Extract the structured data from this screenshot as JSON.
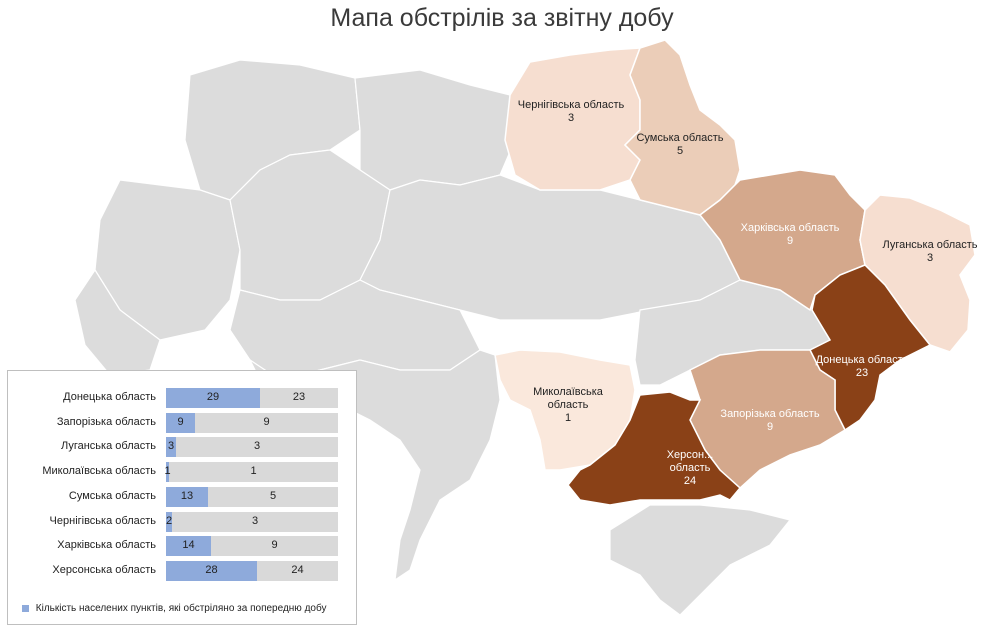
{
  "title": "Мапа обстрілів за звітну добу",
  "colors": {
    "neutral": "#dcdcdc",
    "border": "#ffffff",
    "light": "#f6ded0",
    "medium": "#ebcdb8",
    "mid": "#d4a88c",
    "dark": "#8a4117",
    "bar_current": "#8eaadb",
    "bar_previous": "#d9d9d9"
  },
  "regions": [
    {
      "name": "Чернігівська область",
      "value": "3"
    },
    {
      "name": "Сумська область",
      "value": "5"
    },
    {
      "name": "Харківська область",
      "value": "9"
    },
    {
      "name": "Луганська область",
      "value": "3"
    },
    {
      "name": "Донецька область",
      "value": "23"
    },
    {
      "name": "Миколаївська область",
      "value": "1"
    },
    {
      "name": "Запорізька область",
      "value": "9"
    },
    {
      "name": "Херсон... область",
      "value": "24"
    }
  ],
  "chart_data": {
    "type": "bar",
    "orientation": "horizontal",
    "categories": [
      "Донецька область",
      "Запорізька область",
      "Луганська область",
      "Миколаївська область",
      "Сумська область",
      "Чернігівська область",
      "Харківська область",
      "Херсонська область"
    ],
    "series": [
      {
        "name": "Кількість населених пунктів, які обстріляно за попередню добу",
        "values": [
          29,
          9,
          3,
          1,
          13,
          2,
          14,
          28
        ]
      },
      {
        "values": [
          23,
          9,
          3,
          1,
          5,
          3,
          9,
          24
        ]
      }
    ],
    "legend_text": "Кількість населених пунктів, які обстріляно за попередню добу"
  }
}
